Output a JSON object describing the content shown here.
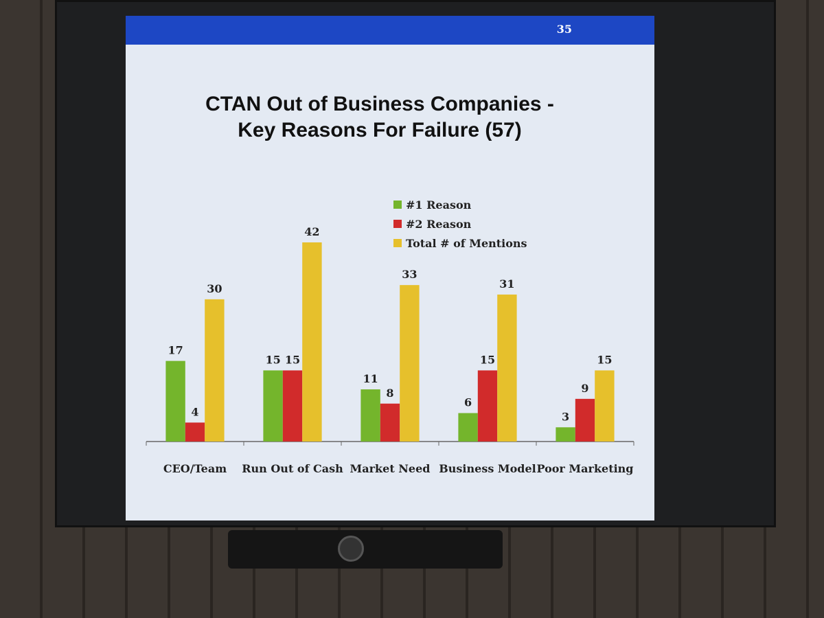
{
  "slide_number": "35",
  "chart_data": {
    "type": "bar",
    "title": "CTAN Out of Business Companies - Key Reasons For Failure (57)",
    "categories": [
      "CEO/Team",
      "Run Out of Cash",
      "Market Need",
      "Business Model",
      "Poor Marketing"
    ],
    "series": [
      {
        "name": "#1 Reason",
        "color": "#74b52c",
        "values": [
          17,
          15,
          11,
          6,
          3
        ]
      },
      {
        "name": "#2 Reason",
        "color": "#d12b2b",
        "values": [
          4,
          15,
          8,
          15,
          9
        ]
      },
      {
        "name": "Total # of Mentions",
        "color": "#e6c02c",
        "values": [
          30,
          42,
          33,
          31,
          15
        ]
      }
    ]
  }
}
